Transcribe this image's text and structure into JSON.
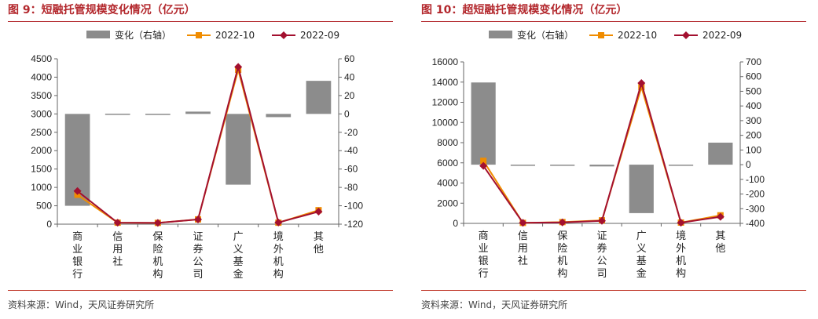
{
  "source_note": "资料来源：Wind，天风证券研究所",
  "chart_data": [
    {
      "type": "bar+line",
      "title": "图 9：短融托管规模变化情况（亿元）",
      "categories": [
        "商业银行",
        "信用社",
        "保险机构",
        "证券公司",
        "广义基金",
        "境外机构",
        "其他"
      ],
      "y_left_lim": [
        0,
        4500
      ],
      "y_left_ticks": [
        0,
        500,
        1000,
        1500,
        2000,
        2500,
        3000,
        3500,
        4000,
        4500
      ],
      "y_right_lim": [
        -120,
        60
      ],
      "y_right_ticks": [
        -120,
        -100,
        -80,
        -60,
        -40,
        -20,
        0,
        20,
        40,
        60
      ],
      "legend": [
        "变化（右轴）",
        "2022-10",
        "2022-09"
      ],
      "series": [
        {
          "name": "变化（右轴）",
          "kind": "bar",
          "axis": "right",
          "color": "#8c8c8c",
          "values": [
            -100,
            0.2,
            0.1,
            2.5,
            -77,
            -3.5,
            36
          ]
        },
        {
          "name": "2022-10",
          "kind": "line",
          "axis": "left",
          "color": "#f08c00",
          "marker": "square",
          "values": [
            800,
            40,
            35,
            130,
            4200,
            40,
            380
          ]
        },
        {
          "name": "2022-09",
          "kind": "line",
          "axis": "left",
          "color": "#a3102f",
          "marker": "diamond",
          "values": [
            900,
            40,
            35,
            128,
            4280,
            45,
            340
          ]
        }
      ]
    },
    {
      "type": "bar+line",
      "title": "图 10：超短融托管规模变化情况（亿元）",
      "categories": [
        "商业银行",
        "信用社",
        "保险机构",
        "证券公司",
        "广义基金",
        "境外机构",
        "其他"
      ],
      "y_left_lim": [
        0,
        16000
      ],
      "y_left_ticks": [
        0,
        2000,
        4000,
        6000,
        8000,
        10000,
        12000,
        14000,
        16000
      ],
      "y_right_lim": [
        -400,
        700
      ],
      "y_right_ticks": [
        -400,
        -300,
        -200,
        -100,
        0,
        100,
        200,
        300,
        400,
        500,
        600,
        700
      ],
      "legend": [
        "变化（右轴）",
        "2022-10",
        "2022-09"
      ],
      "series": [
        {
          "name": "变化（右轴）",
          "kind": "bar",
          "axis": "right",
          "color": "#8c8c8c",
          "values": [
            560,
            -3,
            -5,
            -12,
            -330,
            -2,
            150
          ]
        },
        {
          "name": "2022-10",
          "kind": "line",
          "axis": "left",
          "color": "#f08c00",
          "marker": "square",
          "values": [
            6200,
            50,
            130,
            300,
            13500,
            80,
            800
          ]
        },
        {
          "name": "2022-09",
          "kind": "line",
          "axis": "left",
          "color": "#a3102f",
          "marker": "diamond",
          "values": [
            5700,
            60,
            100,
            250,
            13900,
            70,
            650
          ]
        }
      ]
    }
  ]
}
